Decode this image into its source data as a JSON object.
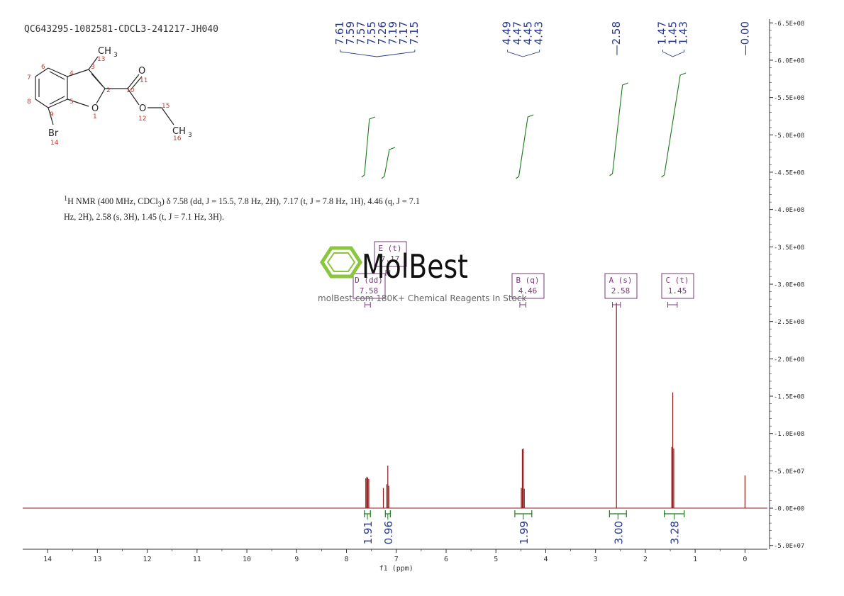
{
  "sample_id": "QC643295-1082581-CDCL3-241217-JH040",
  "nmr_summary": {
    "nucleus": "1",
    "line1": "H NMR (400 MHz, CDCl",
    "sub3": "3",
    "line1_rest": ") δ 7.58 (dd, J = 15.5, 7.8 Hz, 2H), 7.17 (t, J = 7.8 Hz, 1H), 4.46 (q, J = 7.1",
    "line2": "Hz, 2H), 2.58 (s, 3H), 1.45 (t, J = 7.1 Hz, 3H)."
  },
  "watermark": {
    "brand": "MolBest",
    "tagline": "molBest.com 180K+ Chemical Reagents In Stock"
  },
  "structure": {
    "atoms": {
      "methyl_top": "CH3",
      "carbonyl_o": "O",
      "ring_o": "O",
      "ester_o": "O",
      "methyl_ethyl": "CH3",
      "bromine": "Br"
    },
    "numbers": [
      "13",
      "3",
      "6",
      "4",
      "7",
      "2",
      "10",
      "11",
      "8",
      "5",
      "9",
      "1",
      "15",
      "12",
      "16",
      "14"
    ]
  },
  "chart_data": {
    "type": "line",
    "xlabel": "f1 (ppm)",
    "x_ticks": [
      14,
      13,
      12,
      11,
      10,
      9,
      8,
      7,
      6,
      5,
      4,
      3,
      2,
      1,
      0
    ],
    "xlim": [
      14.5,
      -0.45
    ],
    "y_tick_labels": [
      "6.5E+08",
      "6.0E+08",
      "5.5E+08",
      "5.0E+08",
      "4.5E+08",
      "4.0E+08",
      "3.5E+08",
      "3.0E+08",
      "2.5E+08",
      "2.0E+08",
      "1.5E+08",
      "1.0E+08",
      "5.0E+07",
      "0.0E+00",
      "-5.0E+07"
    ],
    "y_tick_values": [
      650000000,
      600000000,
      550000000,
      500000000,
      450000000,
      400000000,
      350000000,
      300000000,
      250000000,
      200000000,
      150000000,
      100000000,
      50000000,
      0,
      -50000000
    ],
    "ylim": [
      -55000000,
      655000000
    ],
    "peak_labels": [
      {
        "group": [
          "7.61",
          "7.59",
          "7.57",
          "7.55",
          "7.26",
          "7.19",
          "7.17",
          "7.15"
        ]
      },
      {
        "group": [
          "4.49",
          "4.47",
          "4.45",
          "4.43"
        ]
      },
      {
        "group": [
          "2.58"
        ]
      },
      {
        "group": [
          "1.47",
          "1.45",
          "1.43"
        ]
      },
      {
        "group": [
          "0.00"
        ]
      }
    ],
    "multiplets": [
      {
        "id": "D",
        "type": "dd",
        "shift": "7.58",
        "from": 7.63,
        "to": 7.52
      },
      {
        "id": "E",
        "type": "t",
        "shift": "7.17",
        "from": 7.21,
        "to": 7.13
      },
      {
        "id": "B",
        "type": "q",
        "shift": "4.46",
        "from": 4.52,
        "to": 4.4
      },
      {
        "id": "A",
        "type": "s",
        "shift": "2.58",
        "from": 2.66,
        "to": 2.5
      },
      {
        "id": "C",
        "type": "t",
        "shift": "1.45",
        "from": 1.55,
        "to": 1.36
      }
    ],
    "integrals": [
      {
        "value": "1.91",
        "from": 7.64,
        "to": 7.52
      },
      {
        "value": "0.96",
        "from": 7.22,
        "to": 7.12
      },
      {
        "value": "1.99",
        "from": 4.62,
        "to": 4.28
      },
      {
        "value": "3.00",
        "from": 2.72,
        "to": 2.38
      },
      {
        "value": "3.28",
        "from": 1.62,
        "to": 1.22
      }
    ],
    "peaks": [
      {
        "ppm": 7.612,
        "height": 40000000
      },
      {
        "ppm": 7.592,
        "height": 42000000
      },
      {
        "ppm": 7.572,
        "height": 41000000
      },
      {
        "ppm": 7.552,
        "height": 39000000
      },
      {
        "ppm": 7.26,
        "height": 27000000
      },
      {
        "ppm": 7.19,
        "height": 32000000
      },
      {
        "ppm": 7.17,
        "height": 57000000
      },
      {
        "ppm": 7.15,
        "height": 30000000
      },
      {
        "ppm": 4.49,
        "height": 27000000
      },
      {
        "ppm": 4.47,
        "height": 79000000
      },
      {
        "ppm": 4.45,
        "height": 80000000
      },
      {
        "ppm": 4.43,
        "height": 26000000
      },
      {
        "ppm": 2.58,
        "height": 275000000
      },
      {
        "ppm": 1.47,
        "height": 82000000
      },
      {
        "ppm": 1.45,
        "height": 155000000
      },
      {
        "ppm": 1.43,
        "height": 80000000
      },
      {
        "ppm": 0.0,
        "height": 44000000
      }
    ],
    "color": "#8b1a1a",
    "integral_color": "#1a7a1a",
    "label_color": "#2a3a8c",
    "box_color": "#7a3a7a"
  }
}
